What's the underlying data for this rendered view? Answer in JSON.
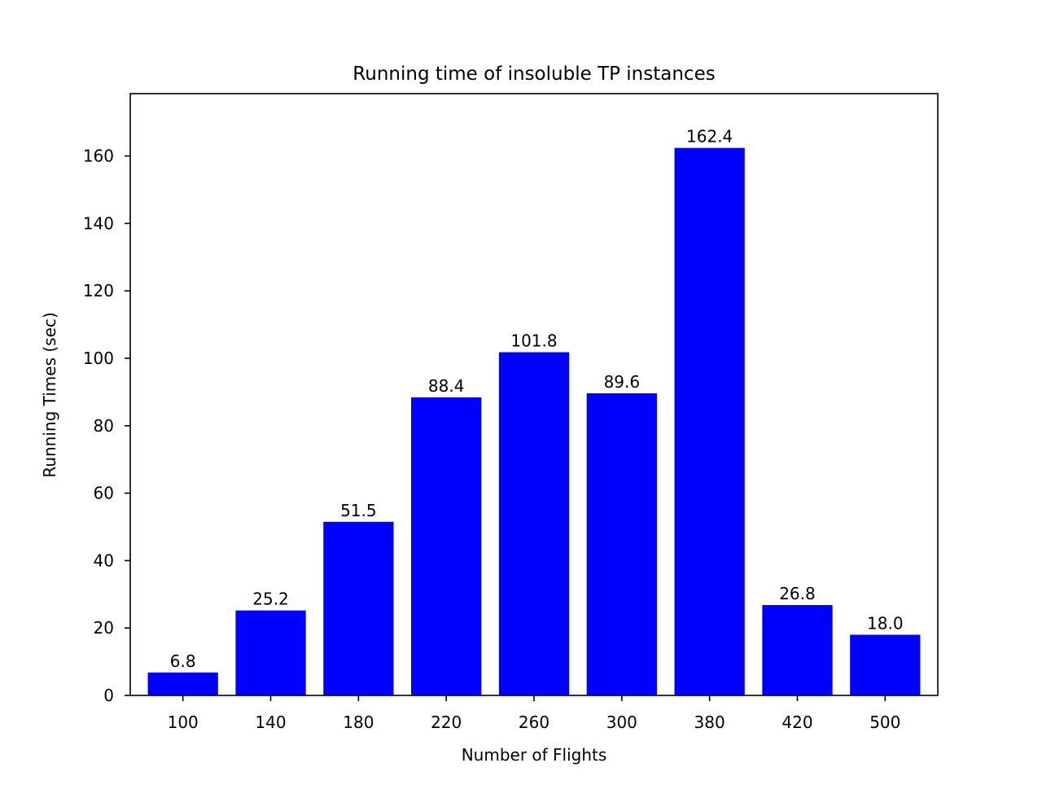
{
  "chart_data": {
    "type": "bar",
    "title": "Running time of insoluble TP instances",
    "xlabel": "Number of Flights",
    "ylabel": "Running Times (sec)",
    "categories": [
      "100",
      "140",
      "180",
      "220",
      "260",
      "300",
      "380",
      "420",
      "500"
    ],
    "values": [
      6.8,
      25.2,
      51.5,
      88.4,
      101.8,
      89.6,
      162.4,
      26.8,
      18.0
    ],
    "data_labels": [
      "6.8",
      "25.2",
      "51.5",
      "88.4",
      "101.8",
      "89.6",
      "162.4",
      "26.8",
      "18.0"
    ],
    "ylim": [
      0,
      178.5
    ],
    "yticks": [
      0,
      20,
      40,
      60,
      80,
      100,
      120,
      140,
      160
    ],
    "ytick_labels": [
      "0",
      "20",
      "40",
      "60",
      "80",
      "100",
      "120",
      "140",
      "160"
    ],
    "bar_color": "#0000ff",
    "grid": false,
    "legend": "none"
  }
}
